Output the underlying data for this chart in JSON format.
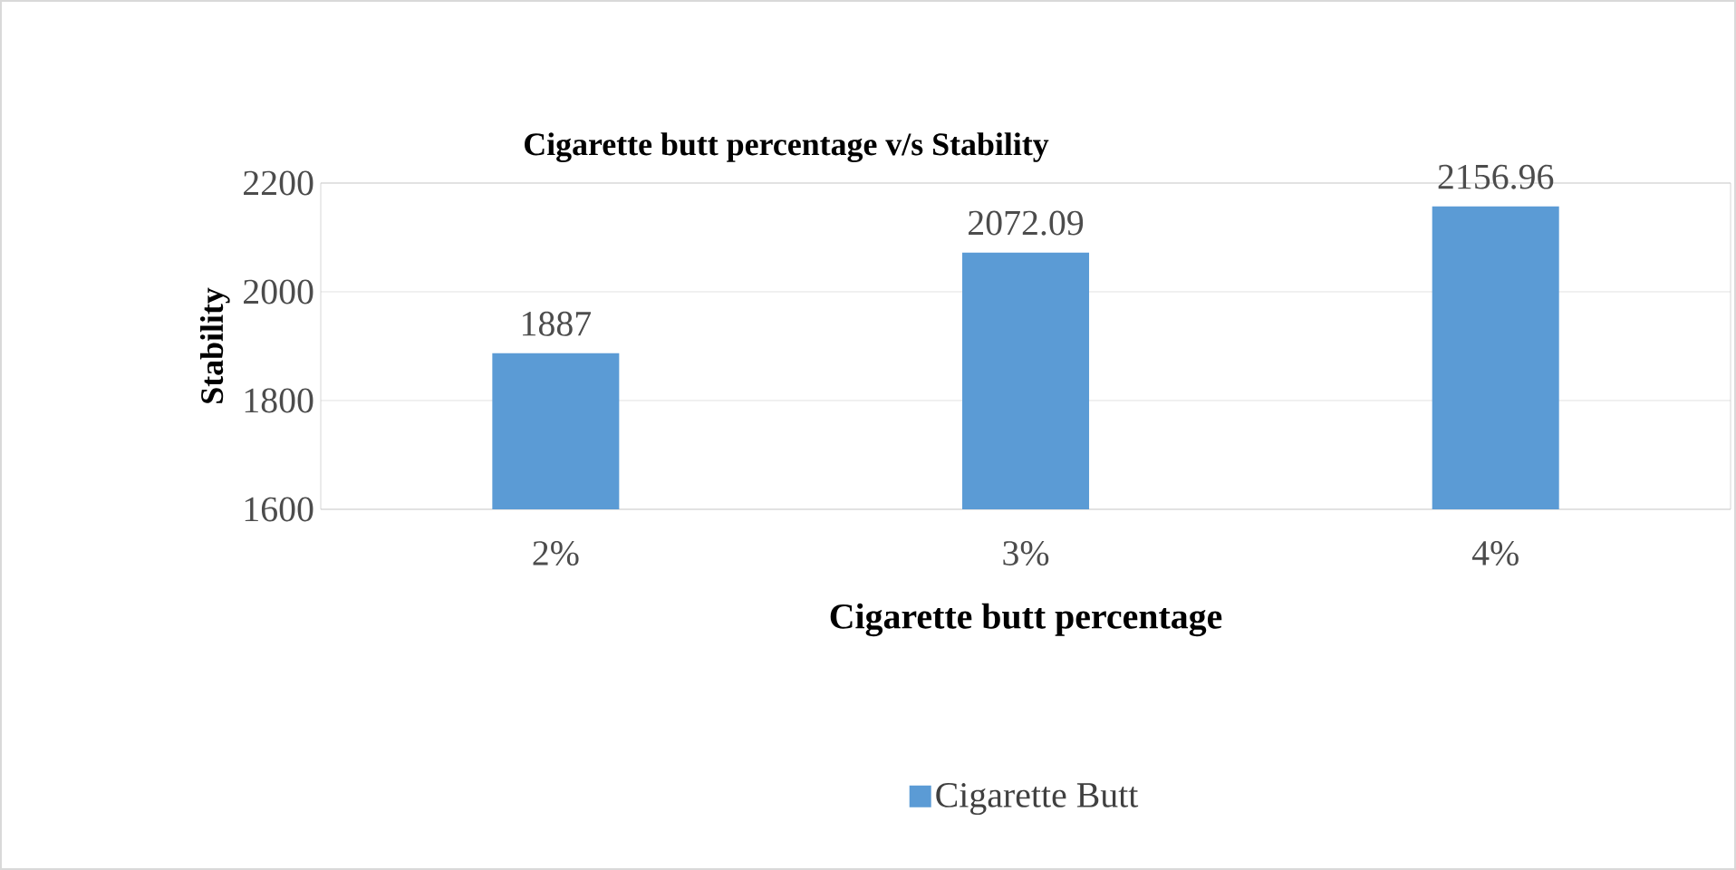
{
  "chart_data": {
    "type": "bar",
    "title": "Cigarette butt percentage v/s Stability",
    "xlabel": "Cigarette butt percentage",
    "ylabel": "Stability",
    "categories": [
      "2%",
      "3%",
      "4%"
    ],
    "series": [
      {
        "name": "Cigarette Butt",
        "color": "#5b9bd5",
        "values": [
          1887,
          2072.09,
          2156.96
        ]
      }
    ],
    "ylim": [
      1600,
      2200
    ],
    "yticks": [
      1600,
      1800,
      2000,
      2200
    ],
    "grid": "y",
    "legend": "bottom",
    "data_labels": true
  }
}
